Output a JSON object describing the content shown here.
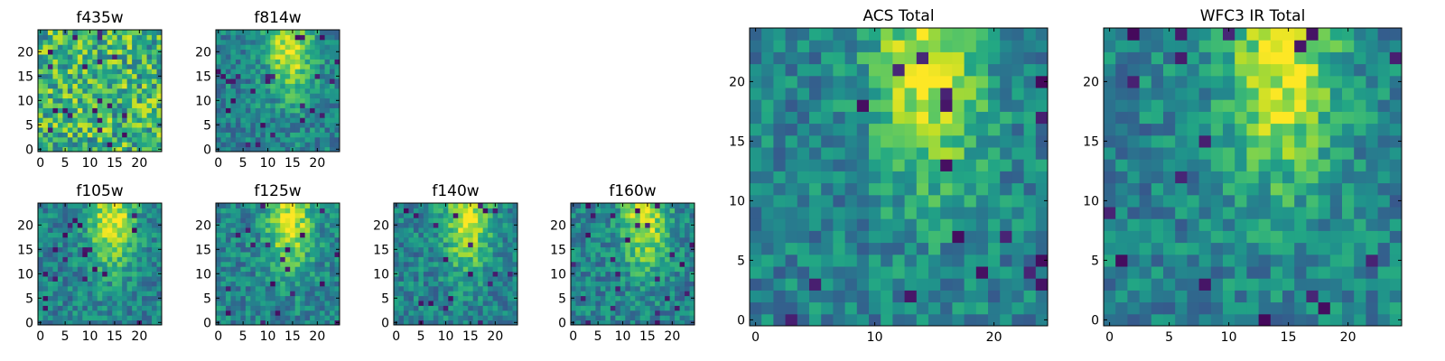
{
  "chart_data": [
    {
      "type": "heatmap",
      "title": "f435w",
      "xticks": [
        0,
        5,
        10,
        15,
        20
      ],
      "yticks": [
        0,
        5,
        10,
        15,
        20
      ],
      "xlim": [
        0,
        25
      ],
      "ylim": [
        0,
        25
      ],
      "colormap": "viridis",
      "pattern": "noise",
      "seed": 11
    },
    {
      "type": "heatmap",
      "title": "f814w",
      "xticks": [
        0,
        5,
        10,
        15,
        20
      ],
      "yticks": [
        0,
        5,
        10,
        15,
        20
      ],
      "xlim": [
        0,
        25
      ],
      "ylim": [
        0,
        25
      ],
      "colormap": "viridis",
      "pattern": "source",
      "seed": 23
    },
    {
      "type": "heatmap",
      "title": "f105w",
      "xticks": [
        0,
        5,
        10,
        15,
        20
      ],
      "yticks": [
        0,
        5,
        10,
        15,
        20
      ],
      "xlim": [
        0,
        25
      ],
      "ylim": [
        0,
        25
      ],
      "colormap": "viridis",
      "pattern": "source",
      "seed": 37
    },
    {
      "type": "heatmap",
      "title": "f125w",
      "xticks": [
        0,
        5,
        10,
        15,
        20
      ],
      "yticks": [
        0,
        5,
        10,
        15,
        20
      ],
      "xlim": [
        0,
        25
      ],
      "ylim": [
        0,
        25
      ],
      "colormap": "viridis",
      "pattern": "source",
      "seed": 41
    },
    {
      "type": "heatmap",
      "title": "f140w",
      "xticks": [
        0,
        5,
        10,
        15,
        20
      ],
      "yticks": [
        0,
        5,
        10,
        15,
        20
      ],
      "xlim": [
        0,
        25
      ],
      "ylim": [
        0,
        25
      ],
      "colormap": "viridis",
      "pattern": "source",
      "seed": 53
    },
    {
      "type": "heatmap",
      "title": "f160w",
      "xticks": [
        0,
        5,
        10,
        15,
        20
      ],
      "yticks": [
        0,
        5,
        10,
        15,
        20
      ],
      "xlim": [
        0,
        25
      ],
      "ylim": [
        0,
        25
      ],
      "colormap": "viridis",
      "pattern": "source",
      "seed": 67
    },
    {
      "type": "heatmap",
      "title": "ACS Total",
      "xticks": [
        0,
        10,
        20
      ],
      "yticks": [
        0,
        5,
        10,
        15,
        20
      ],
      "xlim": [
        0,
        25
      ],
      "ylim": [
        0,
        25
      ],
      "colormap": "viridis",
      "pattern": "source",
      "seed": 79
    },
    {
      "type": "heatmap",
      "title": "WFC3 IR Total",
      "xticks": [
        0,
        5,
        10,
        15,
        20
      ],
      "yticks": [
        0,
        5,
        10,
        15,
        20
      ],
      "xlim": [
        0,
        25
      ],
      "ylim": [
        0,
        25
      ],
      "colormap": "viridis",
      "pattern": "source",
      "seed": 97
    }
  ]
}
